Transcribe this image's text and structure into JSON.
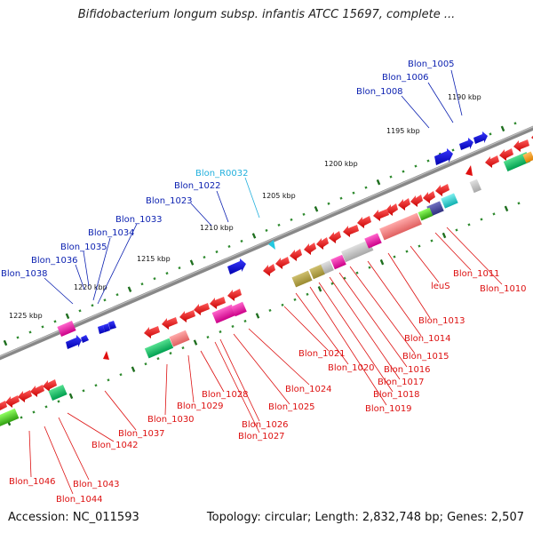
{
  "title": "Bifidobacterium longum subsp. infantis ATCC 15697, complete ...",
  "footer": {
    "accession": "Accession: NC_011593",
    "topology": "Topology: circular; Length: 2,832,748 bp; Genes: 2,507"
  },
  "colors": {
    "backbone": "#7a7a7a",
    "forward_label": "#0a1fb0",
    "reverse_label": "#dd1111",
    "rna_label": "#22b0dd",
    "ruler_dot": "#2f8a2f",
    "ruler_dash": "#1f6f1f"
  },
  "scale_ticks": [
    "1190 kbp",
    "1195 kbp",
    "1200 kbp",
    "1205 kbp",
    "1210 kbp",
    "1215 kbp",
    "1220 kbp",
    "1225 kbp"
  ],
  "forward_genes": [
    "Blon_1005",
    "Blon_1006",
    "Blon_1008",
    "Blon_1022",
    "Blon_1023",
    "Blon_1033",
    "Blon_1034",
    "Blon_1035",
    "Blon_1036",
    "Blon_1038"
  ],
  "rna_genes": [
    "Blon_R0032"
  ],
  "reverse_genes": [
    "Blon_1010",
    "Blon_1011",
    "leuS",
    "Blon_1013",
    "Blon_1014",
    "Blon_1015",
    "Blon_1016",
    "Blon_1017",
    "Blon_1018",
    "Blon_1019",
    "Blon_1020",
    "Blon_1021",
    "Blon_1024",
    "Blon_1025",
    "Blon_1026",
    "Blon_1027",
    "Blon_1028",
    "Blon_1029",
    "Blon_1030",
    "Blon_1037",
    "Blon_1042",
    "Blon_1043",
    "Blon_1044",
    "Blon_1046"
  ]
}
